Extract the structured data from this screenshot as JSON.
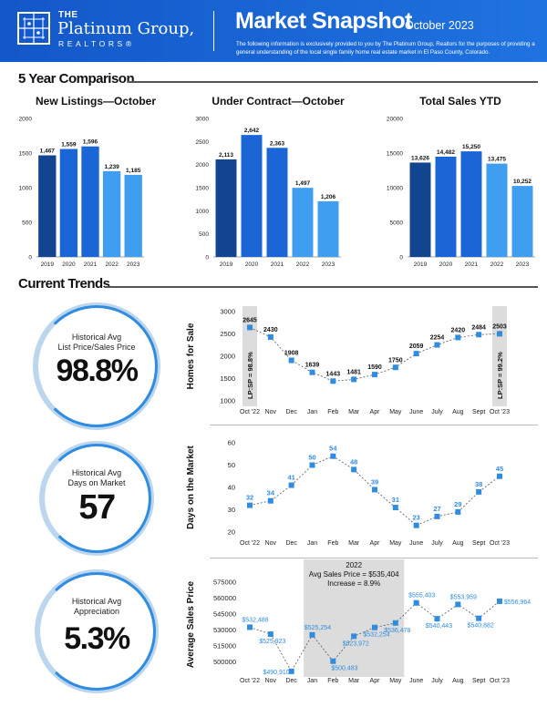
{
  "header": {
    "logo_the": "THE",
    "logo_name": "Platinum Group,",
    "logo_realtors": "REALTORS®",
    "title": "Market Snapshot",
    "date": "October 2023",
    "disclaimer": "The following information is exclusively provided to you by The Platinum Group, Realtors for the purposes of providing a general understanding of the local single family home real estate market in El Paso County, Colorado."
  },
  "sections": {
    "comparison": "5 Year Comparison",
    "trends": "Current Trends"
  },
  "stats": [
    {
      "label_line1": "Historical Avg",
      "label_line2": "List Price/Sales Price",
      "value": "98.8%"
    },
    {
      "label_line1": "Historical Avg",
      "label_line2": "Days on Market",
      "value": "57"
    },
    {
      "label_line1": "Historical Avg",
      "label_line2": "Appreciation",
      "value": "5.3%"
    }
  ],
  "colors": {
    "dark": "#12448f",
    "mid": "#1a66d6",
    "light": "#3f9ef0",
    "accent": "#2f8ce0"
  },
  "chart_data": [
    {
      "type": "bar",
      "title": "New Listings—October",
      "categories": [
        "2019",
        "2020",
        "2021",
        "2022",
        "2023"
      ],
      "values": [
        1467,
        1559,
        1596,
        1239,
        1185
      ],
      "value_labels": [
        "1,467",
        "1,559",
        "1,596",
        "1,239",
        "1,185"
      ],
      "yticks": [
        "0",
        "500",
        "1000",
        "1500",
        "2000"
      ],
      "ylim": [
        0,
        2000
      ]
    },
    {
      "type": "bar",
      "title": "Under Contract—October",
      "categories": [
        "2019",
        "2020",
        "2021",
        "2022",
        "2023"
      ],
      "values": [
        2113,
        2642,
        2363,
        1497,
        1206
      ],
      "value_labels": [
        "2,113",
        "2,642",
        "2,363",
        "1,497",
        "1,206"
      ],
      "yticks": [
        "0",
        "500",
        "1000",
        "1500",
        "2000",
        "2500",
        "3000"
      ],
      "ylim": [
        0,
        3000
      ]
    },
    {
      "type": "bar",
      "title": "Total Sales YTD",
      "categories": [
        "2019",
        "2020",
        "2021",
        "2022",
        "2023"
      ],
      "values": [
        13626,
        14482,
        15250,
        13475,
        10252
      ],
      "value_labels": [
        "13,626",
        "14,482",
        "15,250",
        "13,475",
        "10,252"
      ],
      "yticks": [
        "0",
        "5000",
        "10000",
        "15000",
        "20000"
      ],
      "ylim": [
        0,
        20000
      ]
    },
    {
      "type": "line",
      "ylabel": "Homes for Sale",
      "x": [
        "Oct '22",
        "Nov",
        "Dec",
        "Jan",
        "Feb",
        "Mar",
        "Apr",
        "May",
        "June",
        "July",
        "Aug",
        "Sept",
        "Oct '23"
      ],
      "values": [
        2645,
        2430,
        1908,
        1639,
        1443,
        1481,
        1590,
        1750,
        2059,
        2254,
        2420,
        2484,
        2503
      ],
      "value_labels": [
        "2645",
        "2430",
        "1908",
        "1639",
        "1443",
        "1481",
        "1590",
        "1750",
        "2059",
        "2254",
        "2420",
        "2484",
        "2503"
      ],
      "yticks": [
        "1000",
        "1500",
        "2000",
        "2500",
        "3000"
      ],
      "ylim": [
        1000,
        3000
      ],
      "bands": [
        {
          "index": 0,
          "label": "LP:SP = 98.8%"
        },
        {
          "index": 12,
          "label": "LP:SP = 99.2%"
        }
      ]
    },
    {
      "type": "line",
      "ylabel": "Days on the Market",
      "x": [
        "Oct '22",
        "Nov",
        "Dec",
        "Jan",
        "Feb",
        "Mar",
        "Apr",
        "May",
        "June",
        "July",
        "Aug",
        "Sept",
        "Oct '23"
      ],
      "values": [
        32,
        34,
        41,
        50,
        54,
        48,
        39,
        31,
        23,
        27,
        29,
        38,
        45
      ],
      "value_labels": [
        "32",
        "34",
        "41",
        "50",
        "54",
        "48",
        "39",
        "31",
        "23",
        "27",
        "29",
        "38",
        "45"
      ],
      "yticks": [
        "20",
        "30",
        "40",
        "50",
        "60"
      ],
      "ylim": [
        20,
        60
      ]
    },
    {
      "type": "line",
      "ylabel": "Average Sales Price",
      "x": [
        "Oct '22",
        "Nov",
        "Dec",
        "Jan",
        "Feb",
        "Mar",
        "Apr",
        "May",
        "June",
        "July",
        "Aug",
        "Sept",
        "Oct '23"
      ],
      "values": [
        532488,
        525923,
        490910,
        525254,
        500483,
        523972,
        532254,
        536478,
        555403,
        540443,
        553959,
        540882,
        556964
      ],
      "value_labels": [
        "$532,488",
        "$525,923",
        "$490,910",
        "$525,254",
        "$500,483",
        "$523,972",
        "$532,254",
        "$536,478",
        "$555,403",
        "$540,443",
        "$553,959",
        "$540,882",
        "$556,964"
      ],
      "yticks": [
        "500000",
        "515000",
        "530000",
        "545000",
        "560000",
        "575000"
      ],
      "ylim": [
        492500,
        577500
      ],
      "annotation": {
        "line1": "2022",
        "line2": "Avg Sales Price = $535,404",
        "line3": "Increase = 8.9%",
        "from_index": 3,
        "to_index": 7
      }
    }
  ]
}
